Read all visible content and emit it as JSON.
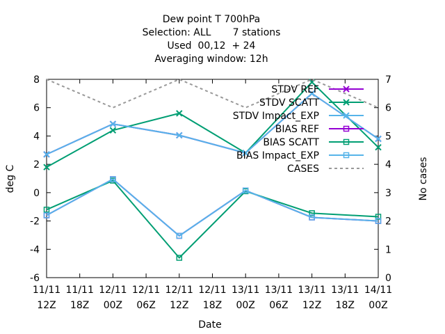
{
  "chart_data": {
    "type": "line",
    "title_lines": [
      "Dew point T 700hPa",
      "Selection: ALL       7 stations",
      "Used  00,12  + 24",
      "Averaging window: 12h"
    ],
    "xlabel": "Date",
    "ylabel": "deg C",
    "y2label": "No cases",
    "ylim": [
      -6,
      8
    ],
    "y2lim": [
      0,
      7
    ],
    "yticks": [
      "-6",
      "-4",
      "-2",
      "0",
      "2",
      "4",
      "6",
      "8"
    ],
    "y2ticks": [
      "0",
      "1",
      "2",
      "3",
      "4",
      "5",
      "6",
      "7"
    ],
    "x_categories": [
      {
        "date": "11/11",
        "hour": "12Z"
      },
      {
        "date": "11/11",
        "hour": "18Z"
      },
      {
        "date": "12/11",
        "hour": "00Z"
      },
      {
        "date": "12/11",
        "hour": "06Z"
      },
      {
        "date": "12/11",
        "hour": "12Z"
      },
      {
        "date": "12/11",
        "hour": "18Z"
      },
      {
        "date": "13/11",
        "hour": "00Z"
      },
      {
        "date": "13/11",
        "hour": "06Z"
      },
      {
        "date": "13/11",
        "hour": "12Z"
      },
      {
        "date": "13/11",
        "hour": "18Z"
      },
      {
        "date": "14/11",
        "hour": "00Z"
      }
    ],
    "legend_position": "top-right",
    "series": [
      {
        "name": "STDV REF",
        "color": "#9400d3",
        "marker": "x",
        "axis": "y1",
        "dash": false,
        "points": [
          [
            0,
            2.7
          ],
          [
            2,
            4.85
          ],
          [
            4,
            4.05
          ],
          [
            6,
            2.8
          ],
          [
            8,
            7.0
          ],
          [
            10,
            3.8
          ]
        ]
      },
      {
        "name": "STDV SCATT",
        "color": "#009e73",
        "marker": "x",
        "axis": "y1",
        "dash": false,
        "points": [
          [
            0,
            1.8
          ],
          [
            2,
            4.4
          ],
          [
            4,
            5.6
          ],
          [
            6,
            2.8
          ],
          [
            8,
            7.8
          ],
          [
            10,
            3.2
          ]
        ]
      },
      {
        "name": "STDV Impact_EXP",
        "color": "#56b4e9",
        "marker": "x",
        "axis": "y1",
        "dash": false,
        "points": [
          [
            0,
            2.7
          ],
          [
            2,
            4.85
          ],
          [
            4,
            4.05
          ],
          [
            6,
            2.8
          ],
          [
            8,
            7.0
          ],
          [
            10,
            3.8
          ]
        ]
      },
      {
        "name": "BIAS REF",
        "color": "#9400d3",
        "marker": "square",
        "axis": "y1",
        "dash": false,
        "points": [
          [
            0,
            -1.6
          ],
          [
            2,
            0.95
          ],
          [
            4,
            -3.05
          ],
          [
            6,
            0.15
          ],
          [
            8,
            -1.75
          ],
          [
            10,
            -2.0
          ]
        ]
      },
      {
        "name": "BIAS SCATT",
        "color": "#009e73",
        "marker": "square",
        "axis": "y1",
        "dash": false,
        "points": [
          [
            0,
            -1.2
          ],
          [
            2,
            0.85
          ],
          [
            4,
            -4.6
          ],
          [
            6,
            0.1
          ],
          [
            8,
            -1.45
          ],
          [
            10,
            -1.7
          ]
        ]
      },
      {
        "name": "BIAS Impact_EXP",
        "color": "#56b4e9",
        "marker": "square",
        "axis": "y1",
        "dash": false,
        "points": [
          [
            0,
            -1.6
          ],
          [
            2,
            0.95
          ],
          [
            4,
            -3.05
          ],
          [
            6,
            0.15
          ],
          [
            8,
            -1.75
          ],
          [
            10,
            -2.0
          ]
        ]
      },
      {
        "name": "CASES",
        "color": "#999999",
        "marker": "none",
        "axis": "y2",
        "dash": true,
        "points": [
          [
            0,
            7
          ],
          [
            2,
            6
          ],
          [
            4,
            7
          ],
          [
            6,
            6
          ],
          [
            8,
            7
          ],
          [
            10,
            6
          ]
        ]
      }
    ]
  }
}
